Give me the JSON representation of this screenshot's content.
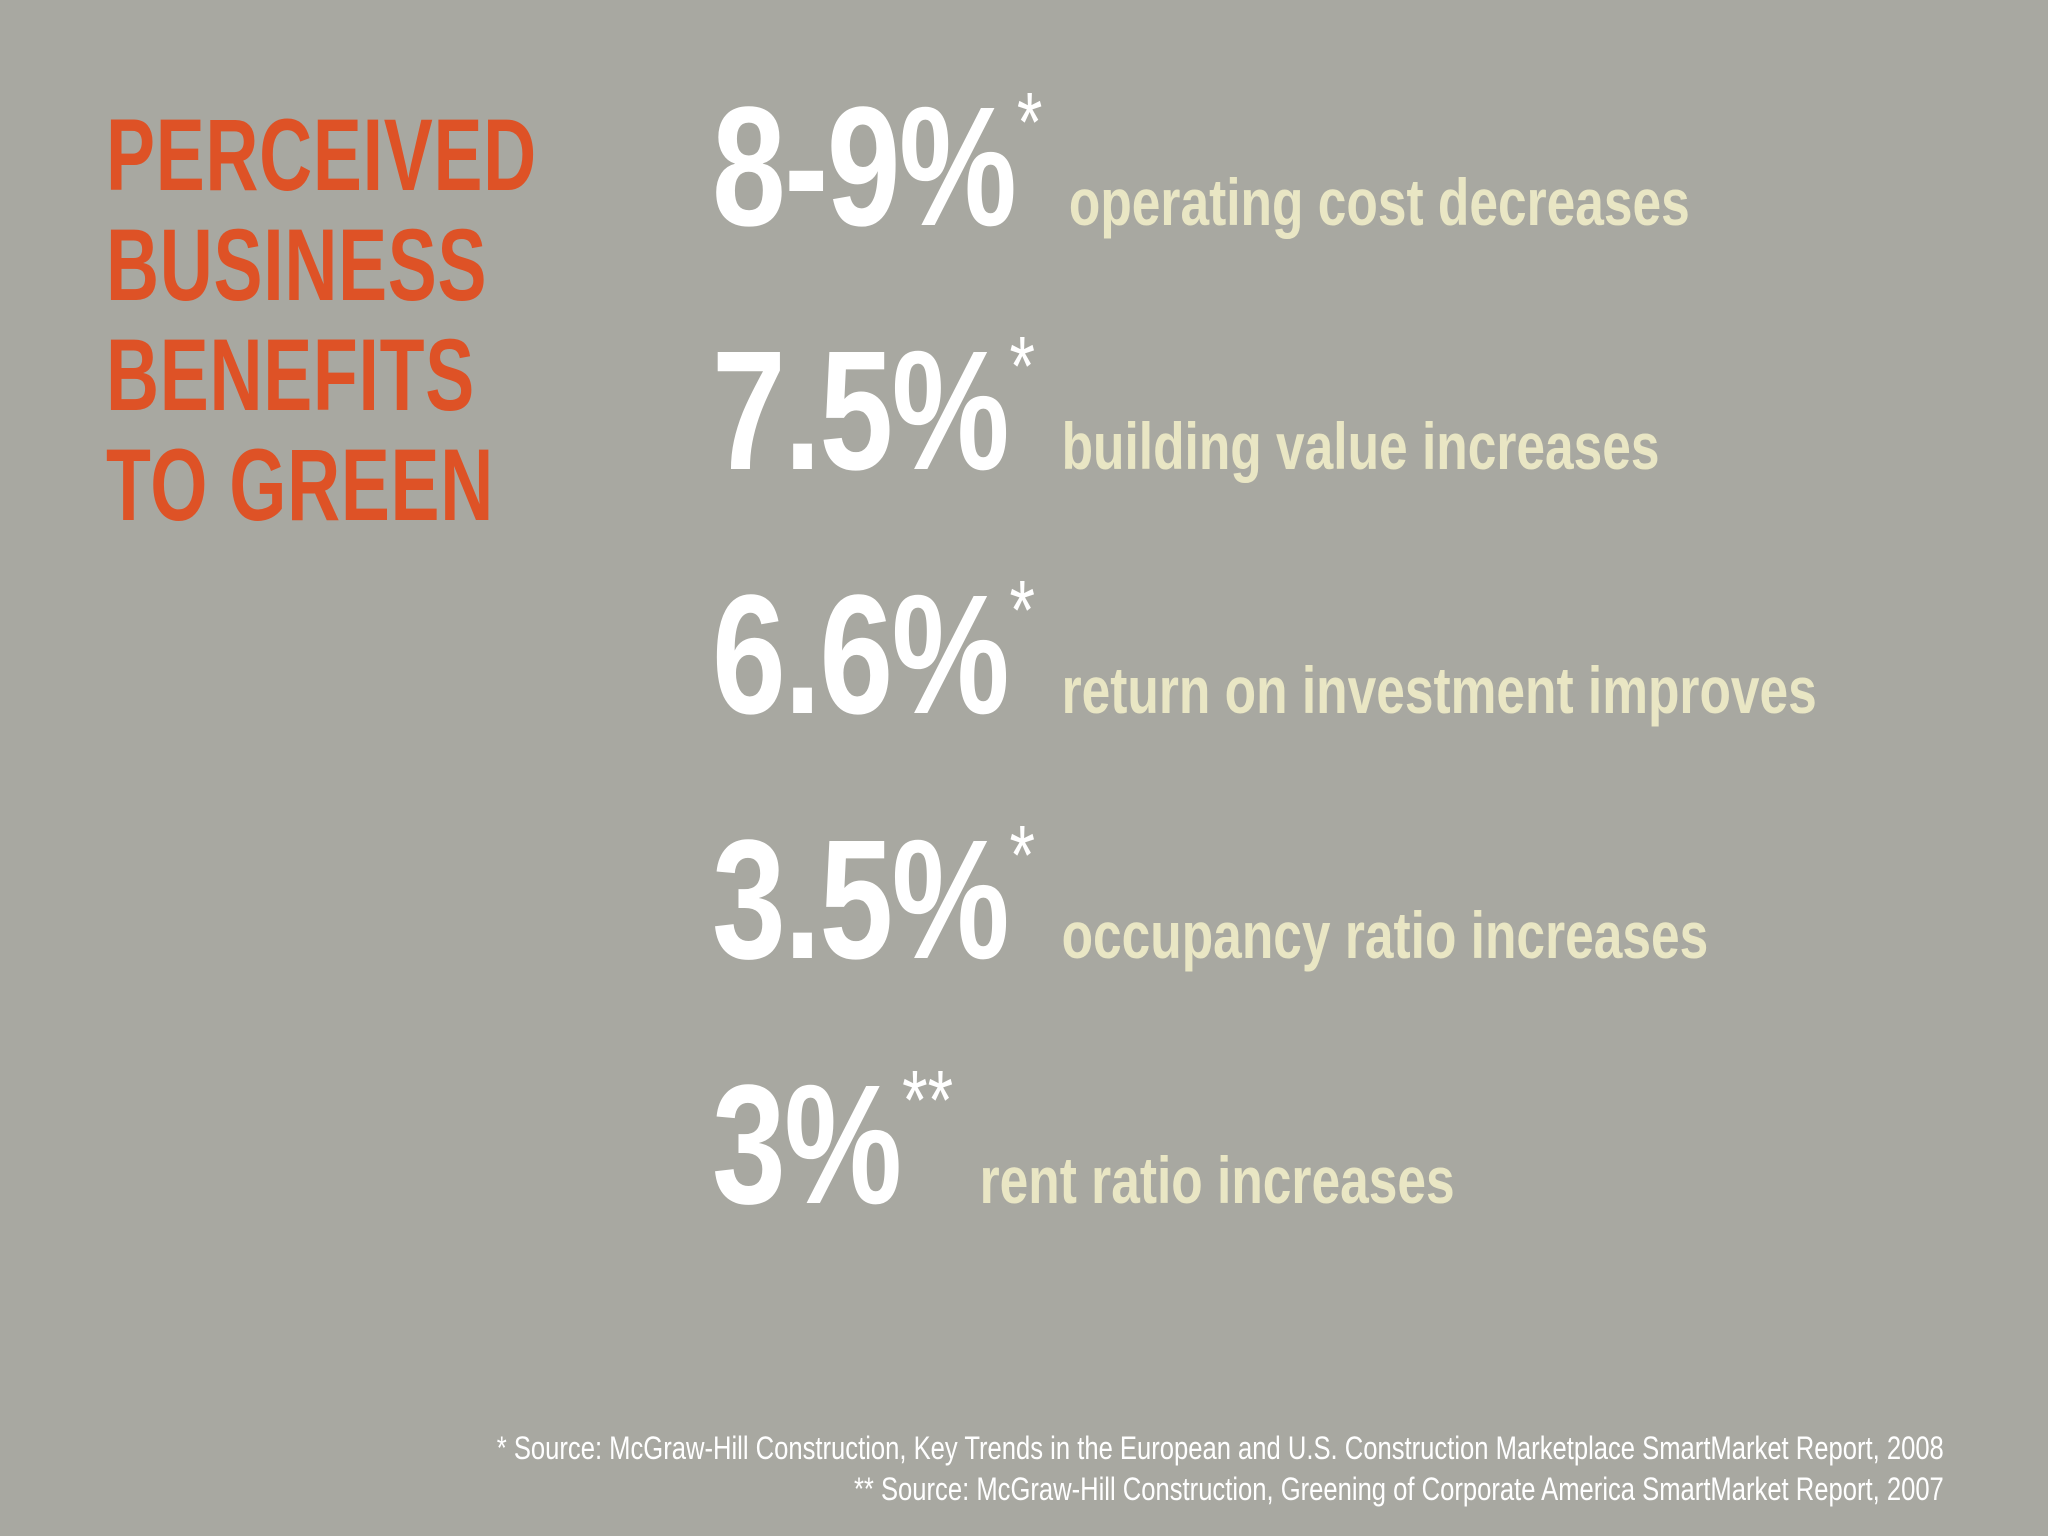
{
  "heading": {
    "lines": [
      "PERCEIVED",
      "BUSINESS",
      "BENEFITS",
      "TO GREEN"
    ]
  },
  "stats": [
    {
      "value": "8-9%",
      "mark": "*",
      "label": "operating cost decreases"
    },
    {
      "value": "7.5%",
      "mark": "*",
      "label": "building value increases"
    },
    {
      "value": "6.6%",
      "mark": "*",
      "label": "return on investment improves"
    },
    {
      "value": "3.5%",
      "mark": "*",
      "label": "occupancy ratio increases"
    },
    {
      "value": "3%",
      "mark": "**",
      "label": "rent ratio increases"
    }
  ],
  "footnotes": [
    "* Source: McGraw-Hill Construction, Key Trends in the European and U.S. Construction Marketplace SmartMarket Report, 2008",
    "** Source: McGraw-Hill Construction, Greening of Corporate America SmartMarket Report, 2007"
  ],
  "colors": {
    "background": "#a8a8a1",
    "heading": "#de5226",
    "value": "#ffffff",
    "label": "#e9e6c4"
  }
}
